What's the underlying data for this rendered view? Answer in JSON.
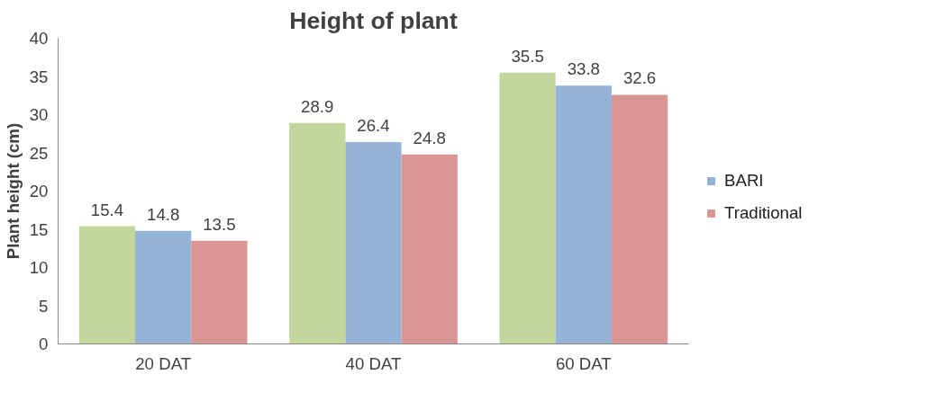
{
  "chart_data": {
    "type": "bar",
    "title": "Height of plant",
    "ylabel": "Plant height (cm)",
    "categories": [
      "20 DAT",
      "40 DAT",
      "60 DAT"
    ],
    "series": [
      {
        "color": "#c3d69b",
        "values": [
          15.4,
          28.9,
          35.5
        ]
      },
      {
        "name": "BARI",
        "color": "#95b3d7",
        "values": [
          14.8,
          26.4,
          33.8
        ]
      },
      {
        "name": "Traditional",
        "color": "#d99694",
        "values": [
          13.5,
          24.8,
          32.6
        ]
      }
    ],
    "ylim": [
      0,
      40
    ],
    "yticks": [
      0,
      5,
      10,
      15,
      20,
      25,
      30,
      35,
      40
    ],
    "grid": false,
    "legend": "right",
    "data_labels": true
  }
}
